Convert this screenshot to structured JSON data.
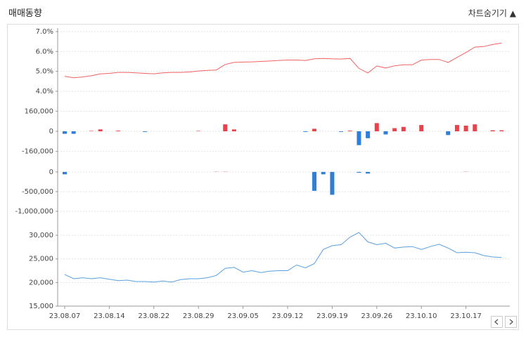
{
  "header": {
    "title": "매매동향",
    "toggle": "차트숨기기 ▲"
  },
  "chart_data": [
    {
      "type": "line",
      "color": "#f06262",
      "values": [
        4.75,
        4.68,
        4.72,
        4.78,
        4.87,
        4.9,
        4.95,
        4.95,
        4.93,
        4.9,
        4.88,
        4.93,
        4.95,
        4.95,
        4.97,
        5.02,
        5.05,
        5.07,
        5.35,
        5.45,
        5.47,
        5.48,
        5.5,
        5.52,
        5.55,
        5.57,
        5.57,
        5.55,
        5.63,
        5.65,
        5.63,
        5.62,
        5.65,
        5.15,
        4.92,
        5.27,
        5.17,
        5.28,
        5.33,
        5.33,
        5.57,
        5.6,
        5.6,
        5.45,
        5.7,
        5.95,
        6.22,
        6.25,
        6.35,
        6.42
      ],
      "ylim": [
        4.0,
        7.0
      ],
      "yticks": [
        {
          "value": 4.0,
          "label": "4.0%"
        },
        {
          "value": 5.0,
          "label": "5.0%"
        },
        {
          "value": 6.0,
          "label": "6.0%"
        },
        {
          "value": 7.0,
          "label": "7.0%"
        }
      ],
      "grid": true
    },
    {
      "type": "bar",
      "positive_color": "#e8434b",
      "negative_color": "#2f7fd9",
      "values": [
        -20000,
        -20000,
        0,
        3000,
        15000,
        0,
        5000,
        0,
        0,
        -5000,
        0,
        0,
        0,
        0,
        0,
        3000,
        0,
        0,
        55000,
        15000,
        0,
        0,
        0,
        0,
        0,
        0,
        0,
        -5000,
        20000,
        0,
        0,
        -5000,
        5000,
        -110000,
        -55000,
        65000,
        -25000,
        25000,
        35000,
        0,
        50000,
        0,
        0,
        -30000,
        50000,
        45000,
        55000,
        0,
        8000,
        8000
      ],
      "ylim": [
        -240000,
        240000
      ],
      "yticks": [
        {
          "value": -160000,
          "label": "-160,000"
        },
        0,
        {
          "value": 160000,
          "label": "160,000"
        }
      ],
      "grid": true
    },
    {
      "type": "bar",
      "positive_color": "#e8434b",
      "negative_color": "#2f7fd9",
      "values": [
        -60000,
        0,
        0,
        0,
        0,
        0,
        0,
        0,
        0,
        0,
        0,
        0,
        0,
        0,
        0,
        0,
        0,
        5000,
        5000,
        0,
        0,
        0,
        0,
        0,
        0,
        0,
        0,
        0,
        -480000,
        -60000,
        -580000,
        0,
        0,
        -20000,
        -40000,
        0,
        0,
        0,
        0,
        0,
        0,
        0,
        0,
        0,
        0,
        5000,
        0,
        0,
        0,
        0
      ],
      "ylim": [
        -1250000,
        230000
      ],
      "yticks": [
        {
          "value": -1000000,
          "label": "-1,000,000"
        },
        {
          "value": -500000,
          "label": "-500,000"
        },
        0
      ],
      "grid": true
    },
    {
      "type": "line",
      "color": "#5aa0e0",
      "categories": [
        "23.08.07",
        null,
        null,
        null,
        null,
        "23.08.14",
        null,
        null,
        null,
        null,
        "23.08.22",
        null,
        null,
        null,
        null,
        "23.08.29",
        null,
        null,
        null,
        null,
        "23.09.05",
        null,
        null,
        null,
        null,
        "23.09.12",
        null,
        null,
        null,
        null,
        "23.09.19",
        null,
        null,
        null,
        null,
        "23.09.26",
        null,
        null,
        null,
        null,
        "23.10.10",
        null,
        null,
        null,
        null,
        "23.10.17",
        null,
        null,
        null,
        null
      ],
      "values": [
        21700,
        20800,
        21000,
        20800,
        21000,
        20700,
        20400,
        20500,
        20200,
        20200,
        20100,
        20300,
        20100,
        20600,
        20800,
        20800,
        21000,
        21500,
        23000,
        23200,
        22200,
        22500,
        22100,
        22400,
        22500,
        22500,
        23700,
        23100,
        24000,
        27000,
        27800,
        28000,
        29600,
        30600,
        28600,
        28000,
        28300,
        27300,
        27500,
        27600,
        27000,
        27600,
        28100,
        27300,
        26300,
        26400,
        26300,
        25700,
        25400,
        25300
      ],
      "ylim": [
        15000,
        31500
      ],
      "yticks": [
        {
          "value": 15000,
          "label": "15,000"
        },
        {
          "value": 20000,
          "label": "20,000"
        },
        {
          "value": 25000,
          "label": "25,000"
        },
        {
          "value": 30000,
          "label": "30,000"
        }
      ],
      "grid": true
    }
  ]
}
